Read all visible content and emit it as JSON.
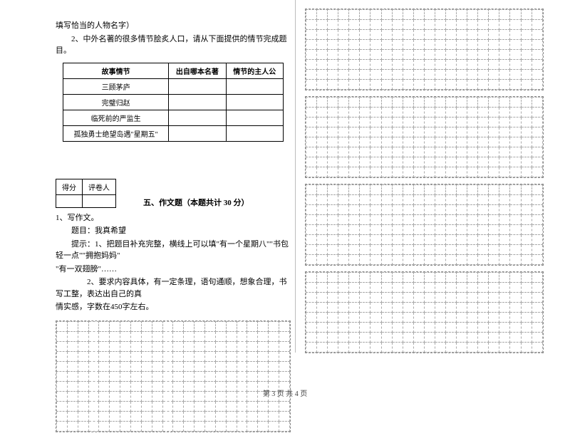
{
  "intro": {
    "line1": "填写恰当的人物名字）",
    "line2": "2、中外名著的很多情节脍炙人口，请从下面提供的情节完成题目。"
  },
  "storyTable": {
    "headers": [
      "故事情节",
      "出自哪本名著",
      "情节的主人公"
    ],
    "rows": [
      [
        "三顾茅庐",
        "",
        ""
      ],
      [
        "完璧归赵",
        "",
        ""
      ],
      [
        "临死前的严监生",
        "",
        ""
      ],
      [
        "孤独勇士绝望岛遇\"星期五\"",
        "",
        ""
      ]
    ]
  },
  "scoreTable": {
    "cells": [
      "得分",
      "评卷人"
    ]
  },
  "sectionTitle": "五、作文题（本题共计 30 分）",
  "essay": {
    "l1": "1、写作文。",
    "l2": "题目：我真希望",
    "l3": "提示：1、把题目补充完整，横线上可以填\"有一个星期八\"\"书包轻一点\"\"拥抱妈妈\"",
    "l4": "\"有一双翅膀\"……",
    "l5": "2、要求内容具体，有一定条理，语句通顺，想象合理，书写工整，表达出自己的真",
    "l6": "情实感，字数在450字左右。"
  },
  "pageNum": "第 3 页 共 4 页",
  "grid": {
    "colsLeft": 22,
    "colsRight": 22,
    "leftRows": 11,
    "rightBlockRows": [
      8,
      8,
      8,
      8
    ]
  }
}
